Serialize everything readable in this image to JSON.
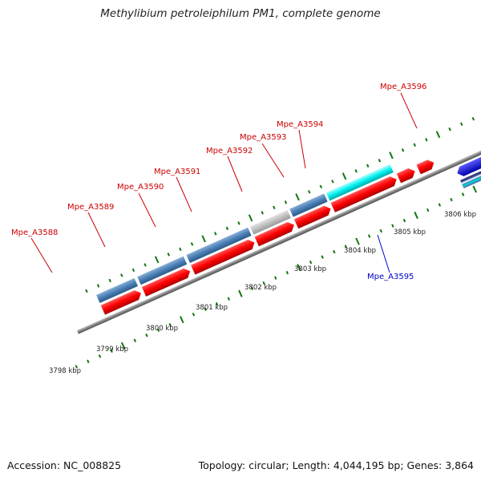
{
  "title": "Methylibium petroleiphilum PM1, complete genome",
  "footer": {
    "accession": "Accession: NC_008825",
    "summary": "Topology: circular; Length: 4,044,195 bp; Genes: 3,864"
  },
  "gene_labels": [
    {
      "id": "A3588",
      "text": "Mpe_A3588",
      "color": "#cc0000"
    },
    {
      "id": "A3589",
      "text": "Mpe_A3589",
      "color": "#cc0000"
    },
    {
      "id": "A3590",
      "text": "Mpe_A3590",
      "color": "#cc0000"
    },
    {
      "id": "A3591",
      "text": "Mpe_A3591",
      "color": "#cc0000"
    },
    {
      "id": "A3592",
      "text": "Mpe_A3592",
      "color": "#cc0000"
    },
    {
      "id": "A3593",
      "text": "Mpe_A3593",
      "color": "#cc0000"
    },
    {
      "id": "A3594",
      "text": "Mpe_A3594",
      "color": "#cc0000"
    },
    {
      "id": "A3596",
      "text": "Mpe_A3596",
      "color": "#cc0000"
    },
    {
      "id": "A3595",
      "text": "Mpe_A3595",
      "color": "#0000cc"
    }
  ],
  "ruler_ticks": [
    "3798 kbp",
    "3799 kbp",
    "3800 kbp",
    "3801 kbp",
    "3802 kbp",
    "3803 kbp",
    "3804 kbp",
    "3805 kbp",
    "3806 kbp"
  ],
  "colors": {
    "cds_forward": "#ff0000",
    "gene_blue": "#4a7fb5",
    "gene_gray": "#c0c0c0",
    "gene_cyan": "#00eeee",
    "gene_purple": "#7b68d8",
    "cds_reverse": "#1010ee",
    "backbone": "#8a8a8a",
    "tick_green": "#117711"
  }
}
